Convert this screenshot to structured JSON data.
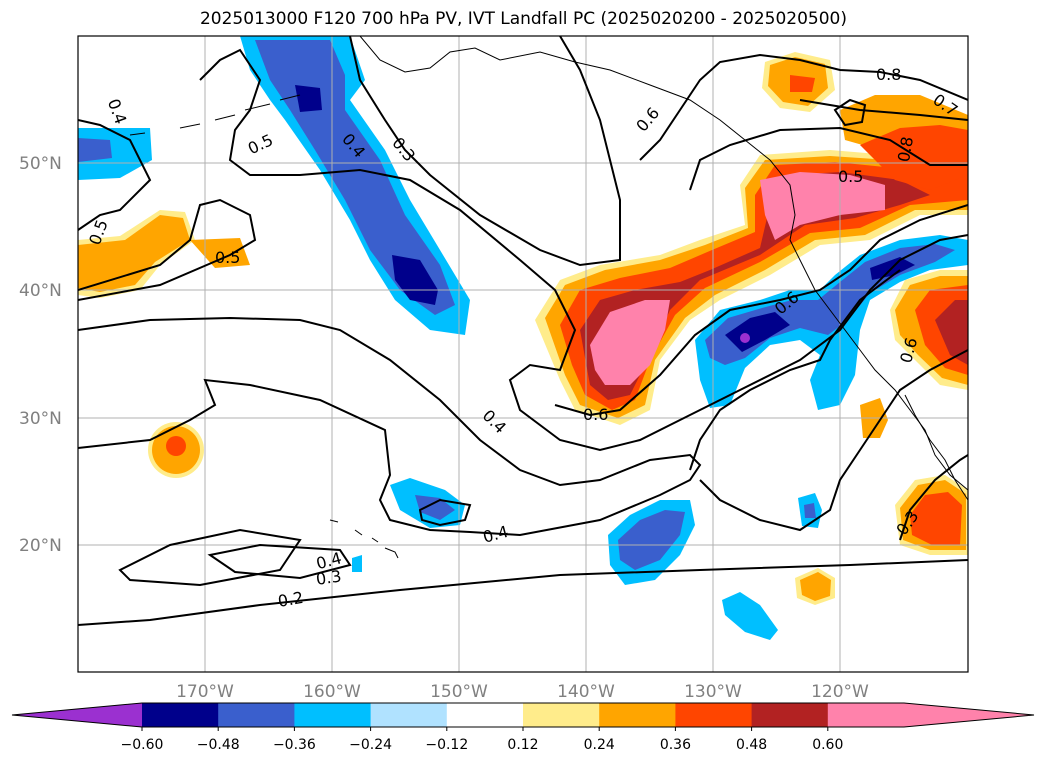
{
  "title": "2025013000 F120 700 hPa PV, IVT Landfall PC (2025020200 - 2025020500)",
  "map": {
    "lat_labels": [
      "50°N",
      "40°N",
      "30°N",
      "20°N"
    ],
    "lon_labels": [
      "170°W",
      "160°W",
      "150°W",
      "140°W",
      "130°W",
      "120°W"
    ],
    "contour_labels": [
      "0.4",
      "0.5",
      "0.4",
      "0.3",
      "0.5",
      "0.5",
      "0.6",
      "0.8",
      "0.7",
      "0.8",
      "0.5",
      "0.6",
      "0.4",
      "0.6",
      "0.6",
      "0.4",
      "0.4",
      "0.3",
      "0.2",
      "0.3"
    ]
  },
  "colorbar": {
    "ticks": [
      "−0.60",
      "−0.48",
      "−0.36",
      "−0.24",
      "−0.12",
      "0.12",
      "0.24",
      "0.36",
      "0.48",
      "0.60"
    ],
    "colors": [
      "#9b30d0",
      "#00008b",
      "#3a5fcd",
      "#00bfff",
      "#b0e2ff",
      "#ffffff",
      "#ffec8b",
      "#ffa500",
      "#ff4500",
      "#b22222",
      "#ff82ab",
      "#ff82ab"
    ]
  }
}
